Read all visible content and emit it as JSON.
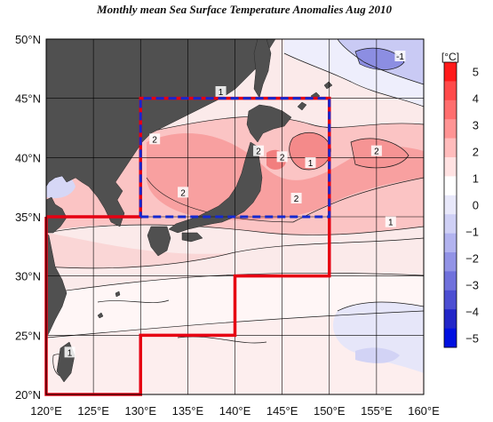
{
  "title": "Monthly mean Sea Surface Temperature Anomalies Aug 2010",
  "map": {
    "lon_range": [
      120,
      160
    ],
    "lat_range": [
      20,
      50
    ],
    "lon_ticks": [
      "120°E",
      "125°E",
      "130°E",
      "135°E",
      "140°E",
      "145°E",
      "150°E",
      "155°E",
      "160°E"
    ],
    "lat_ticks": [
      "20°N",
      "25°N",
      "30°N",
      "35°N",
      "40°N",
      "45°N",
      "50°N"
    ],
    "grid": true,
    "land_color": "#505050",
    "contour_labels": [
      {
        "text": "2",
        "lon": 131.5,
        "lat": 41.5
      },
      {
        "text": "2",
        "lon": 134.5,
        "lat": 37.0
      },
      {
        "text": "2",
        "lon": 142.5,
        "lat": 40.5
      },
      {
        "text": "2",
        "lon": 145.0,
        "lat": 40.0
      },
      {
        "text": "2",
        "lon": 146.5,
        "lat": 36.5
      },
      {
        "text": "2",
        "lon": 155.0,
        "lat": 40.5
      },
      {
        "text": "1",
        "lon": 148.0,
        "lat": 39.5
      },
      {
        "text": "1",
        "lon": 138.5,
        "lat": 45.5
      },
      {
        "text": "1",
        "lon": 156.5,
        "lat": 34.5
      },
      {
        "text": "1",
        "lon": 122.5,
        "lat": 23.5
      },
      {
        "text": "-1",
        "lon": 157.5,
        "lat": 48.5
      }
    ],
    "regions": [
      {
        "name": "red-region",
        "color": "#e60012",
        "style": "solid",
        "points": [
          [
            120,
            35
          ],
          [
            130,
            35
          ],
          [
            130,
            35
          ],
          [
            150,
            35
          ],
          [
            150,
            45
          ],
          [
            130,
            45
          ],
          [
            130,
            35
          ],
          [
            150,
            35
          ],
          [
            150,
            30
          ],
          [
            140,
            30
          ],
          [
            140,
            25
          ],
          [
            130,
            25
          ],
          [
            130,
            20
          ],
          [
            120,
            20
          ]
        ]
      },
      {
        "name": "blue-region",
        "color": "#1428d0",
        "style": "dashed",
        "points": [
          [
            130,
            35
          ],
          [
            150,
            35
          ],
          [
            150,
            45
          ],
          [
            130,
            45
          ]
        ]
      }
    ]
  },
  "colorbar": {
    "unit": "[°C]",
    "labels": [
      "5",
      "4",
      "3",
      "2",
      "1",
      "0",
      "−1",
      "−2",
      "−3",
      "−4",
      "−5"
    ],
    "colors": [
      "#ff1a1a",
      "#ff4a4a",
      "#ff6e6e",
      "#ff9494",
      "#ffbcbc",
      "#ffe2e2",
      "#ffffff",
      "#e8e8fa",
      "#cfd0f5",
      "#b2b3ef",
      "#9293e6",
      "#7071dc",
      "#4c4ed2",
      "#2226c8",
      "#0010e0"
    ]
  }
}
